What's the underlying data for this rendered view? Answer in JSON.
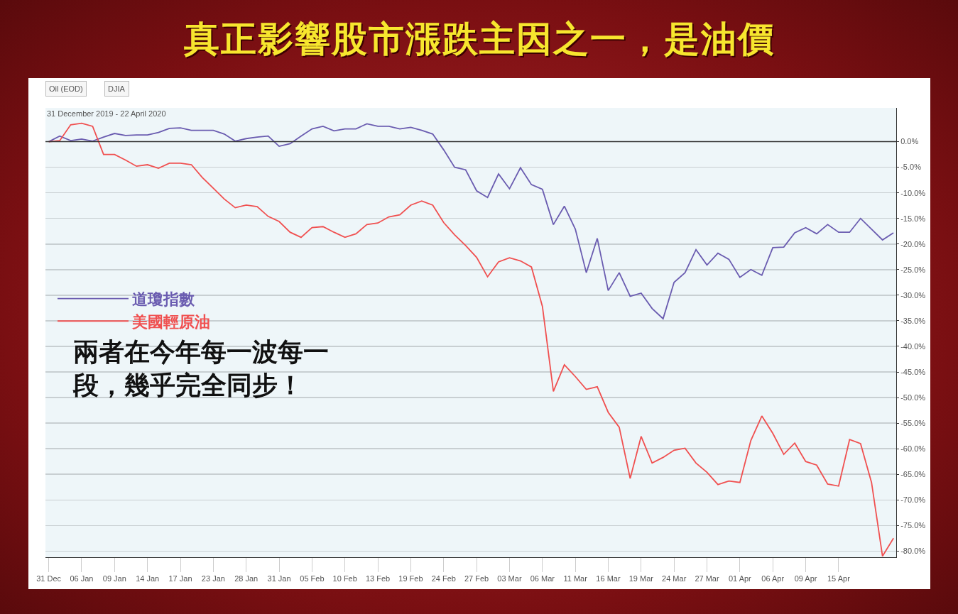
{
  "chart_data": {
    "type": "line",
    "title": "真正影響股市漲跌主因之一，是油價",
    "subtitle": "31 December 2019 - 22 April 2020",
    "annotations": [
      "Oil (EOD)",
      "DJIA",
      "兩者在今年每一波每一段，幾乎完全同步！"
    ],
    "categories": [
      "31 Dec",
      null,
      null,
      "06 Jan",
      null,
      null,
      "09 Jan",
      null,
      null,
      "14 Jan",
      null,
      null,
      "17 Jan",
      null,
      null,
      "23 Jan",
      null,
      null,
      "28 Jan",
      null,
      null,
      "31 Jan",
      null,
      null,
      "05 Feb",
      null,
      null,
      "10 Feb",
      null,
      null,
      "13 Feb",
      null,
      null,
      "19 Feb",
      null,
      null,
      "24 Feb",
      null,
      null,
      "27 Feb",
      null,
      null,
      "03 Mar",
      null,
      null,
      "06 Mar",
      null,
      null,
      "11 Mar",
      null,
      null,
      "16 Mar",
      null,
      null,
      "19 Mar",
      null,
      null,
      "24 Mar",
      null,
      null,
      "27 Mar",
      null,
      null,
      "01 Apr",
      null,
      null,
      "06 Apr",
      null,
      null,
      "09 Apr",
      null,
      null,
      "15 Apr",
      null,
      null,
      null,
      null,
      null
    ],
    "series": [
      {
        "name": "道瓊指數",
        "color": "#6a5cb0",
        "values": [
          0,
          1.1,
          0.2,
          0.5,
          0.1,
          0.9,
          1.6,
          1.2,
          1.3,
          1.3,
          1.8,
          2.6,
          2.7,
          2.2,
          2.2,
          2.2,
          1.5,
          0.1,
          0.6,
          0.9,
          1.1,
          -0.9,
          -0.4,
          1.1,
          2.5,
          3.0,
          2.1,
          2.5,
          2.5,
          3.5,
          3.0,
          3.0,
          2.5,
          2.8,
          2.2,
          1.5,
          -1.6,
          -5.0,
          -5.5,
          -9.6,
          -10.9,
          -6.3,
          -9.2,
          -5.1,
          -8.4,
          -9.3,
          -16.2,
          -12.6,
          -17.1,
          -25.6,
          -18.9,
          -29.1,
          -25.6,
          -30.2,
          -29.6,
          -32.6,
          -34.6,
          -27.5,
          -25.6,
          -21.1,
          -24.1,
          -21.8,
          -23.0,
          -26.5,
          -25.0,
          -26.1,
          -20.7,
          -20.6,
          -17.8,
          -16.8,
          -18.0,
          -16.2,
          -17.7,
          -17.7,
          -15.0,
          -17.1,
          -19.2,
          -17.8
        ]
      },
      {
        "name": "美國輕原油",
        "color": "#f05050",
        "values": [
          0,
          0.2,
          3.3,
          3.6,
          3.0,
          -2.5,
          -2.5,
          -3.6,
          -4.8,
          -4.5,
          -5.2,
          -4.2,
          -4.2,
          -4.5,
          -7.0,
          -9.1,
          -11.2,
          -12.9,
          -12.4,
          -12.7,
          -14.6,
          -15.6,
          -17.7,
          -18.7,
          -16.8,
          -16.6,
          -17.7,
          -18.7,
          -18.0,
          -16.2,
          -15.9,
          -14.7,
          -14.3,
          -12.4,
          -11.6,
          -12.4,
          -15.8,
          -18.2,
          -20.3,
          -22.6,
          -26.4,
          -23.5,
          -22.7,
          -23.3,
          -24.5,
          -32.2,
          -48.8,
          -43.6,
          -45.9,
          -48.4,
          -47.9,
          -52.9,
          -55.8,
          -65.8,
          -57.6,
          -62.8,
          -61.7,
          -60.3,
          -59.9,
          -62.8,
          -64.6,
          -67.0,
          -66.3,
          -66.6,
          -58.4,
          -53.6,
          -57.0,
          -61.1,
          -58.9,
          -62.5,
          -63.2,
          -66.9,
          -67.3,
          -58.2,
          -59.0,
          -66.6,
          -81.0,
          -77.5
        ]
      }
    ],
    "ylim": [
      -81.2,
      6.6
    ],
    "yticks": [
      {
        "value": 0,
        "label": "0.0%"
      },
      {
        "value": -5,
        "label": "-5.0%"
      },
      {
        "value": -10,
        "label": "-10.0%"
      },
      {
        "value": -15,
        "label": "-15.0%"
      },
      {
        "value": -20,
        "label": "-20.0%"
      },
      {
        "value": -25,
        "label": "-25.0%"
      },
      {
        "value": -30,
        "label": "-30.0%"
      },
      {
        "value": -35,
        "label": "-35.0%"
      },
      {
        "value": -40,
        "label": "-40.0%"
      },
      {
        "value": -45,
        "label": "-45.0%"
      },
      {
        "value": -50,
        "label": "-50.0%"
      },
      {
        "value": -55,
        "label": "-55.0%"
      },
      {
        "value": -60,
        "label": "-60.0%"
      },
      {
        "value": -65,
        "label": "-65.0%"
      },
      {
        "value": -70,
        "label": "-70.0%"
      },
      {
        "value": -75,
        "label": "-75.0%"
      },
      {
        "value": -80,
        "label": "-80.0%"
      }
    ],
    "ref_lines": [
      {
        "axis": "y",
        "value": 0,
        "color": "#333333"
      }
    ],
    "grid": "y",
    "legend": "left",
    "marker": "none",
    "line_style": "solid"
  }
}
